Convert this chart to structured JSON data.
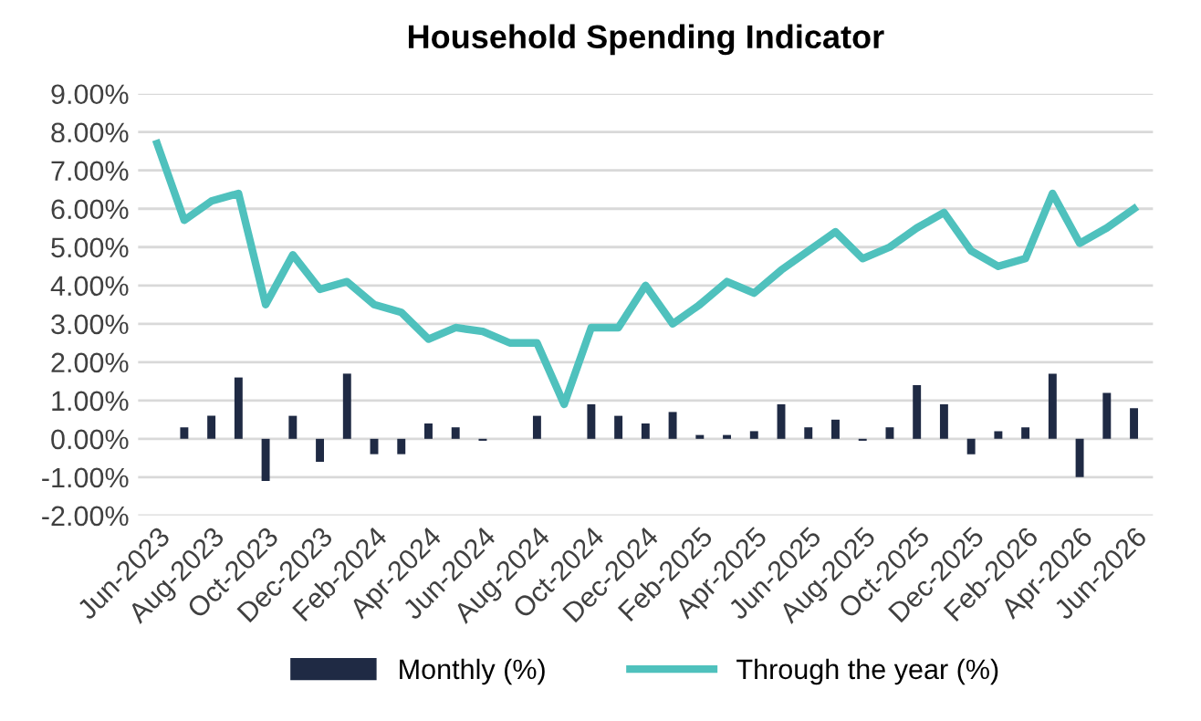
{
  "chart_data": {
    "type": "bar",
    "title": "Household Spending Indicator",
    "categories": [
      "Jun-2023",
      null,
      "Aug-2023",
      null,
      "Oct-2023",
      null,
      "Dec-2023",
      null,
      "Feb-2024",
      null,
      "Apr-2024",
      null,
      "Jun-2024",
      null,
      "Aug-2024",
      null,
      "Oct-2024",
      null,
      "Dec-2024",
      null,
      "Feb-2025",
      null,
      "Apr-2025",
      null,
      "Jun-2025",
      null,
      "Aug-2025",
      null,
      "Oct-2025",
      null,
      "Dec-2025",
      null,
      "Feb-2026",
      null,
      "Apr-2026",
      null,
      "Jun-2026"
    ],
    "series": [
      {
        "name": "Monthly (%)",
        "color": "#1f2a44",
        "values": [
          null,
          0.3,
          0.6,
          1.6,
          -1.1,
          0.6,
          -0.6,
          1.7,
          -0.4,
          -0.4,
          0.4,
          0.3,
          -0.05,
          0,
          0.6,
          0,
          0.9,
          0.6,
          0.4,
          0.7,
          0.1,
          0.1,
          0.2,
          0.9,
          0.3,
          0.5,
          -0.05,
          0.3,
          1.4,
          0.9,
          -0.4,
          0.2,
          0.3,
          1.7,
          -1.0,
          1.2,
          0.8
        ]
      },
      {
        "name": "Through the year (%)",
        "type": "line",
        "color": "#4fc1bd",
        "values": [
          7.7,
          5.7,
          6.2,
          6.4,
          3.5,
          4.8,
          3.9,
          4.1,
          3.5,
          3.3,
          2.6,
          2.9,
          2.8,
          2.5,
          2.5,
          0.9,
          2.9,
          2.9,
          4.0,
          3.0,
          3.5,
          4.1,
          3.8,
          4.4,
          4.9,
          5.4,
          4.7,
          5.0,
          5.5,
          5.9,
          4.9,
          4.5,
          4.7,
          6.4,
          5.1,
          5.5,
          6.0
        ]
      }
    ],
    "ylim": [
      -2,
      9
    ],
    "yticks": [
      {
        "value": -2,
        "label": "-2.00%"
      },
      {
        "value": -1,
        "label": "-1.00%"
      },
      {
        "value": 0,
        "label": "0.00%"
      },
      {
        "value": 1,
        "label": "1.00%"
      },
      {
        "value": 2,
        "label": "2.00%"
      },
      {
        "value": 3,
        "label": "3.00%"
      },
      {
        "value": 4,
        "label": "4.00%"
      },
      {
        "value": 5,
        "label": "5.00%"
      },
      {
        "value": 6,
        "label": "6.00%"
      },
      {
        "value": 7,
        "label": "7.00%"
      },
      {
        "value": 8,
        "label": "8.00%"
      },
      {
        "value": 9,
        "label": "9.00%"
      }
    ],
    "grid": "y",
    "legend": "bottom",
    "marker": "none",
    "line_style": "solid"
  }
}
